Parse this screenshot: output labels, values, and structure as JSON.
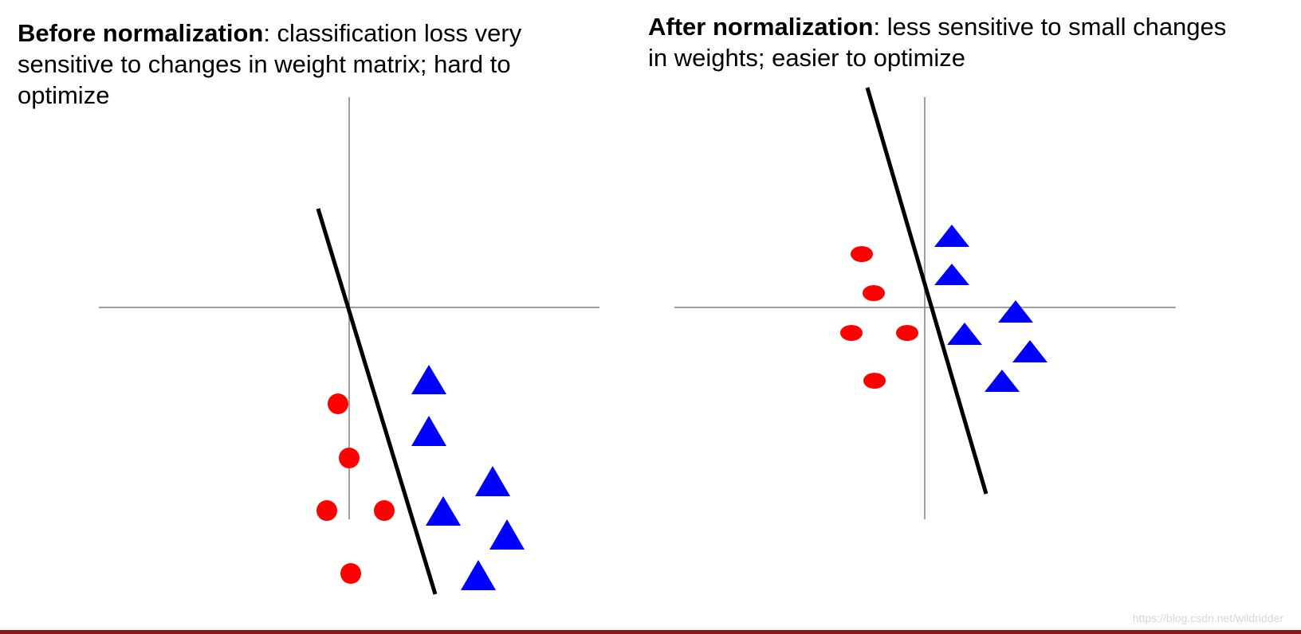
{
  "left_panel": {
    "title_bold": "Before normalization",
    "title_rest": ": classification loss very sensitive to changes in weight matrix; hard to optimize"
  },
  "right_panel": {
    "title_bold": "After normalization",
    "title_rest": ": less sensitive to small changes in weights; easier to optimize"
  },
  "colors": {
    "class_a": "#ff0000",
    "class_b": "#0000ff",
    "boundary": "#000000",
    "axes": "#808080",
    "footer_bar": "#8c1515"
  },
  "watermark": "https://blog.csdn.net/wildridder"
}
